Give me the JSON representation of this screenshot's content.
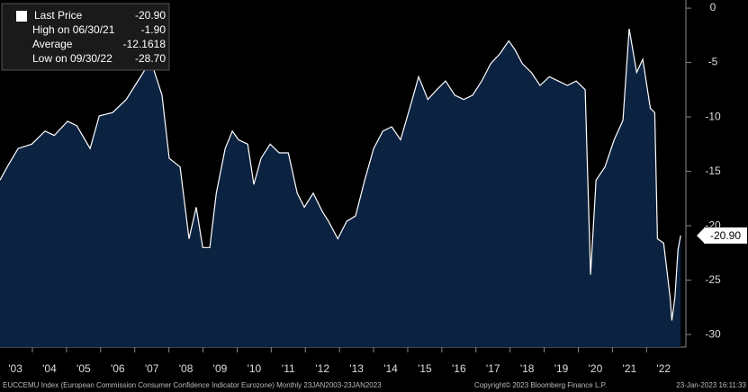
{
  "chart_data": {
    "type": "area",
    "legend": [
      {
        "label": "Last Price",
        "value": "-20.90"
      },
      {
        "label": "High on 06/30/21",
        "value": "-1.90"
      },
      {
        "label": "Average",
        "value": "-12.1618"
      },
      {
        "label": "Low on 09/30/22",
        "value": "-28.70"
      }
    ],
    "last_value_label": "-20.90",
    "footer": {
      "left": "EUCCEMU Index (European Commission Consumer Confidence Indicator Eurozone)  Monthly 23JAN2003-23JAN2023",
      "center": "Copyright© 2023 Bloomberg Finance L.P.",
      "right": "23-Jan-2023 16:11:33"
    },
    "x": [
      2003.05,
      2003.26,
      2003.58,
      2003.98,
      2004.37,
      2004.64,
      2005.03,
      2005.3,
      2005.69,
      2005.96,
      2006.35,
      2006.75,
      2007.01,
      2007.41,
      2007.54,
      2007.8,
      2008.01,
      2008.33,
      2008.59,
      2008.8,
      2008.99,
      2009.2,
      2009.39,
      2009.65,
      2009.86,
      2010.04,
      2010.31,
      2010.49,
      2010.7,
      2010.97,
      2011.23,
      2011.5,
      2011.76,
      2011.97,
      2012.23,
      2012.5,
      2012.68,
      2012.95,
      2013.21,
      2013.47,
      2013.74,
      2014.0,
      2014.27,
      2014.53,
      2014.79,
      2015.06,
      2015.32,
      2015.59,
      2015.85,
      2016.11,
      2016.38,
      2016.64,
      2016.9,
      2017.17,
      2017.43,
      2017.7,
      2017.96,
      2018.14,
      2018.36,
      2018.62,
      2018.88,
      2019.15,
      2019.41,
      2019.68,
      2019.94,
      2020.2,
      2020.36,
      2020.52,
      2020.78,
      2021.05,
      2021.31,
      2021.49,
      2021.71,
      2021.89,
      2022.11,
      2022.24,
      2022.32,
      2022.5,
      2022.69,
      2022.74,
      2022.83,
      2022.92,
      2023.0
    ],
    "series": [
      {
        "name": "Last Price",
        "color": "#ffffff",
        "fill": "#0c2241",
        "values": [
          -15.8,
          -14.6,
          -12.9,
          -12.5,
          -11.3,
          -11.7,
          -10.4,
          -10.8,
          -12.9,
          -9.9,
          -9.6,
          -8.4,
          -7.1,
          -5.1,
          -5.5,
          -8.0,
          -13.8,
          -14.6,
          -21.2,
          -18.3,
          -22.0,
          -22.0,
          -17.0,
          -12.9,
          -11.3,
          -12.1,
          -12.5,
          -16.2,
          -13.8,
          -12.5,
          -13.3,
          -13.3,
          -17.0,
          -18.3,
          -17.0,
          -18.7,
          -19.6,
          -21.2,
          -19.6,
          -19.1,
          -15.8,
          -12.9,
          -11.3,
          -10.9,
          -12.1,
          -9.2,
          -6.3,
          -8.4,
          -7.5,
          -6.7,
          -8.0,
          -8.4,
          -8.0,
          -6.7,
          -5.1,
          -4.2,
          -3.0,
          -3.8,
          -5.1,
          -5.9,
          -7.1,
          -6.3,
          -6.7,
          -7.1,
          -6.7,
          -7.5,
          -24.5,
          -15.8,
          -14.6,
          -12.1,
          -10.3,
          -1.9,
          -5.9,
          -4.7,
          -9.2,
          -9.6,
          -21.2,
          -21.6,
          -26.6,
          -28.7,
          -26.6,
          -22.2,
          -20.9
        ]
      }
    ],
    "xlim": [
      2003.05,
      2023.1
    ],
    "ylim": [
      -31.15,
      0.75
    ],
    "yticks": [
      0,
      -5,
      -10,
      -15,
      -20,
      -25,
      -30
    ],
    "xticks": [
      {
        "value": 2003,
        "label": "'03"
      },
      {
        "value": 2004,
        "label": "'04"
      },
      {
        "value": 2005,
        "label": "'05"
      },
      {
        "value": 2006,
        "label": "'06"
      },
      {
        "value": 2007,
        "label": "'07"
      },
      {
        "value": 2008,
        "label": "'08"
      },
      {
        "value": 2009,
        "label": "'09"
      },
      {
        "value": 2010,
        "label": "'10"
      },
      {
        "value": 2011,
        "label": "'11"
      },
      {
        "value": 2012,
        "label": "'12"
      },
      {
        "value": 2013,
        "label": "'13"
      },
      {
        "value": 2014,
        "label": "'14"
      },
      {
        "value": 2015,
        "label": "'15"
      },
      {
        "value": 2016,
        "label": "'16"
      },
      {
        "value": 2017,
        "label": "'17"
      },
      {
        "value": 2018,
        "label": "'18"
      },
      {
        "value": 2019,
        "label": "'19"
      },
      {
        "value": 2020,
        "label": "'20"
      },
      {
        "value": 2021,
        "label": "'21"
      },
      {
        "value": 2022,
        "label": "'22"
      }
    ]
  }
}
